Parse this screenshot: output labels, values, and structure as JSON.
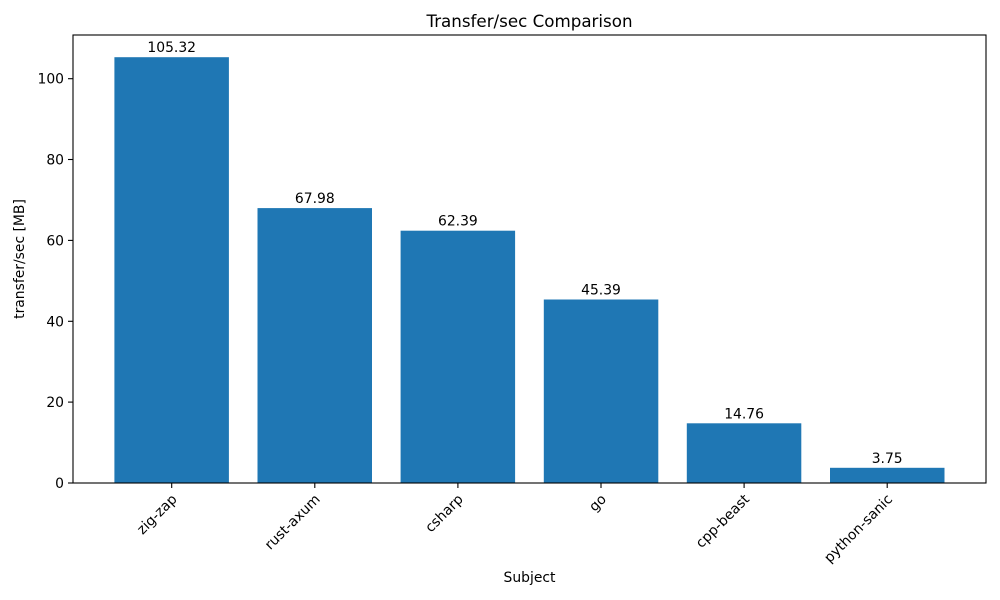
{
  "chart_data": {
    "type": "bar",
    "title": "Transfer/sec Comparison",
    "xlabel": "Subject",
    "ylabel": "transfer/sec [MB]",
    "categories": [
      "zig-zap",
      "rust-axum",
      "csharp",
      "go",
      "cpp-beast",
      "python-sanic"
    ],
    "values": [
      105.32,
      67.98,
      62.39,
      45.39,
      14.76,
      3.75
    ],
    "value_labels": [
      "105.32",
      "67.98",
      "62.39",
      "45.39",
      "14.76",
      "3.75"
    ],
    "yticks": [
      0,
      20,
      40,
      60,
      80,
      100
    ],
    "ylim": [
      0,
      110.8
    ],
    "xtick_rotation_deg": 45,
    "grid": false,
    "legend": "none",
    "bar_color": "#1f77b4",
    "axis_color": "#000000",
    "background_color": "#ffffff"
  }
}
